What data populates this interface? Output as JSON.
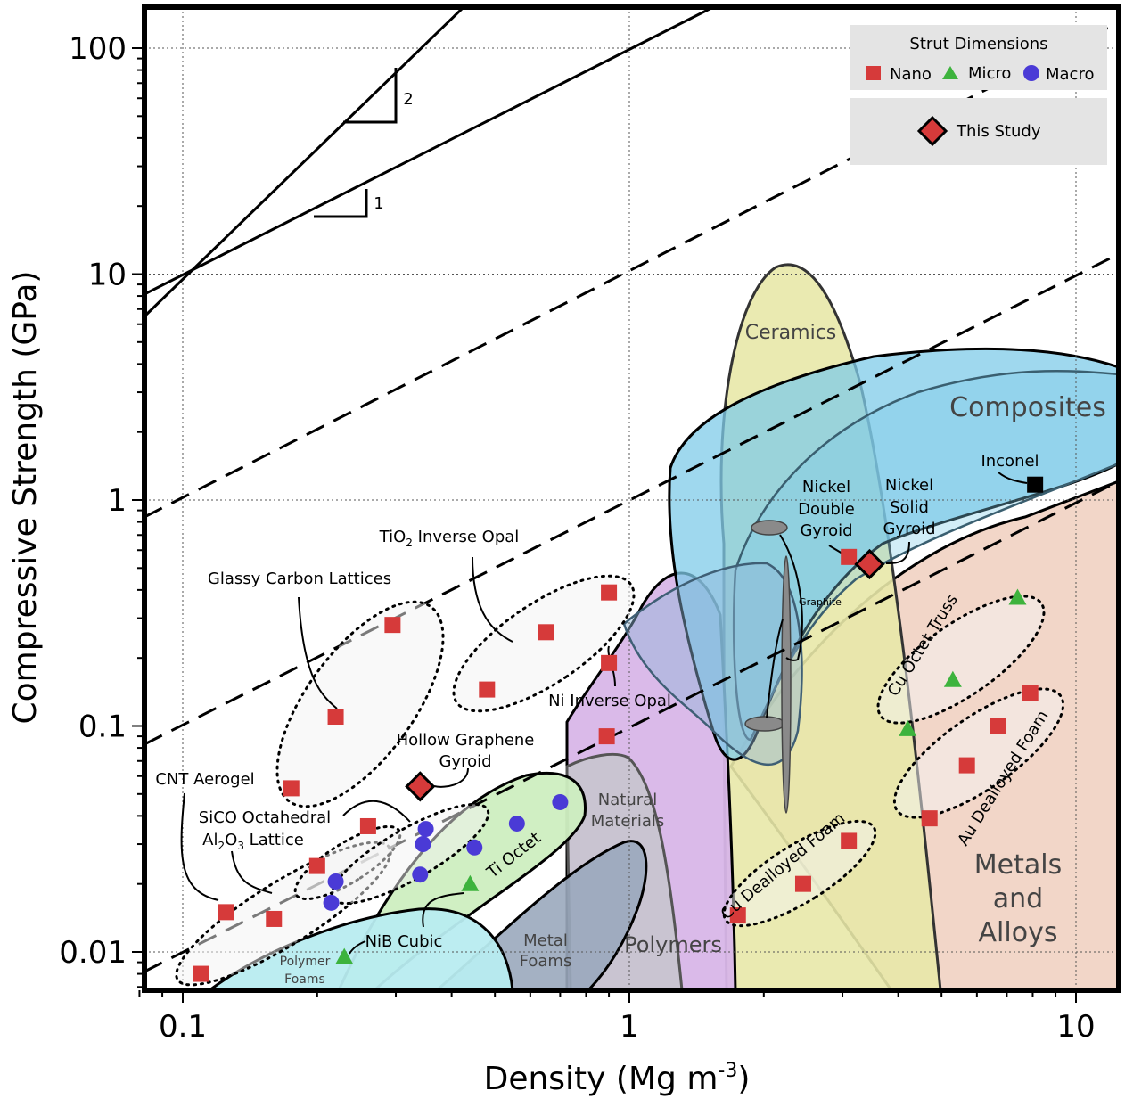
{
  "chart_data": {
    "type": "scatter",
    "x_scale": "log",
    "y_scale": "log",
    "xlabel": "Density (Mg m",
    "xlabel_sup": "-3",
    "xlabel_end": ")",
    "ylabel": "Compressive Strength (GPa)",
    "xlim": [
      0.08,
      12.5
    ],
    "ylim": [
      0.007,
      160
    ],
    "x_ticks": [
      0.1,
      1,
      10
    ],
    "x_tick_labels": [
      "0.1",
      "1",
      "10"
    ],
    "y_ticks": [
      0.01,
      0.1,
      1,
      10,
      100
    ],
    "y_tick_labels": [
      "0.01",
      "0.1",
      "1",
      "10",
      "100"
    ],
    "grid": true,
    "legend": {
      "placement": "top-right",
      "title": "Strut Dimensions",
      "entries": [
        {
          "name": "Nano",
          "marker": "square",
          "color": "#d63a3a"
        },
        {
          "name": "Micro",
          "marker": "triangle",
          "color": "#3db33d"
        },
        {
          "name": "Macro",
          "marker": "circle",
          "color": "#4a3ad6"
        }
      ],
      "study_label": "This Study"
    },
    "slope_labels": [
      "2",
      "1"
    ],
    "regions": [
      {
        "name": "Ceramics",
        "color": "#e8e8a8"
      },
      {
        "name": "Composites",
        "color": "#7fcbe8"
      },
      {
        "name": "Metals and Alloys",
        "lines": [
          "Metals",
          "and",
          "Alloys"
        ],
        "color": "#f2d6c8"
      },
      {
        "name": "Polymers",
        "color": "#d8b6e8"
      },
      {
        "name": "Natural Materials",
        "lines": [
          "Natural",
          "Materials"
        ],
        "color": "#c8c4d0"
      },
      {
        "name": "Metal Foams",
        "lines": [
          "Metal",
          "Foams"
        ],
        "color": "#9aa8bc"
      },
      {
        "name": "Polymer Foams",
        "lines": [
          "Polymer",
          "Foams"
        ],
        "color": "#b8ecf0"
      },
      {
        "name": "Ti Octet",
        "color": "#cdeec0"
      },
      {
        "name": "Graphite",
        "color": "#8a8a8a"
      }
    ],
    "series": [
      {
        "name": "Nano",
        "marker": "square",
        "color": "#d63a3a",
        "points": [
          [
            0.295,
            0.28
          ],
          [
            0.22,
            0.11
          ],
          [
            0.175,
            0.053
          ],
          [
            0.48,
            0.145
          ],
          [
            0.65,
            0.26
          ],
          [
            0.9,
            0.39
          ],
          [
            0.9,
            0.19
          ],
          [
            0.89,
            0.09
          ],
          [
            0.11,
            0.008
          ],
          [
            0.125,
            0.015
          ],
          [
            0.16,
            0.014
          ],
          [
            0.2,
            0.024
          ],
          [
            0.26,
            0.036
          ],
          [
            1.75,
            0.0145
          ],
          [
            2.45,
            0.02
          ],
          [
            3.1,
            0.031
          ],
          [
            3.1,
            0.56
          ],
          [
            4.7,
            0.039
          ],
          [
            5.7,
            0.067
          ],
          [
            6.7,
            0.1
          ],
          [
            7.9,
            0.14
          ]
        ]
      },
      {
        "name": "Micro",
        "marker": "triangle",
        "color": "#3db33d",
        "points": [
          [
            0.23,
            0.0095
          ],
          [
            0.44,
            0.02
          ],
          [
            4.2,
            0.097
          ],
          [
            5.3,
            0.16
          ],
          [
            7.4,
            0.37
          ]
        ]
      },
      {
        "name": "Macro",
        "marker": "circle",
        "color": "#4a3ad6",
        "points": [
          [
            0.215,
            0.0165
          ],
          [
            0.22,
            0.0205
          ],
          [
            0.34,
            0.022
          ],
          [
            0.345,
            0.03
          ],
          [
            0.35,
            0.035
          ],
          [
            0.45,
            0.029
          ],
          [
            0.56,
            0.037
          ],
          [
            0.7,
            0.046
          ]
        ]
      },
      {
        "name": "This Study",
        "marker": "diamond",
        "color": "#d63a3a",
        "points": [
          [
            0.34,
            0.054
          ],
          [
            3.45,
            0.52
          ]
        ]
      },
      {
        "name": "Inconel",
        "marker": "square",
        "color": "#000000",
        "points": [
          [
            8.1,
            1.17
          ]
        ]
      }
    ],
    "annotations": {
      "glassy_carbon": "Glassy Carbon Lattices",
      "tio2_main": "TiO",
      "tio2_sub": "2",
      "tio2_rest": " Inverse Opal",
      "ni_inverse_opal": "Ni Inverse Opal",
      "hollow_graphene_1": "Hollow Graphene",
      "hollow_graphene_2": "Gyroid",
      "cnt_aerogel": "CNT Aerogel",
      "sico": "SiCO Octahedral",
      "al2o3_main": "Al",
      "al2o3_sub1": "2",
      "al2o3_mid": "O",
      "al2o3_sub2": "3",
      "al2o3_rest": " Lattice",
      "ti_octet": "Ti Octet",
      "nib_cubic": "NiB Cubic",
      "cu_dealloyed": "Cu Dealloyed Foam",
      "au_dealloyed": "Au Dealloyed Foam",
      "cu_octet": "Cu Octet Truss",
      "nickel_double": [
        "Nickel",
        "Double",
        "Gyroid"
      ],
      "nickel_solid": [
        "Nickel",
        "Solid",
        "Gyroid"
      ],
      "inconel": "Inconel",
      "graphite": "Graphite"
    }
  }
}
